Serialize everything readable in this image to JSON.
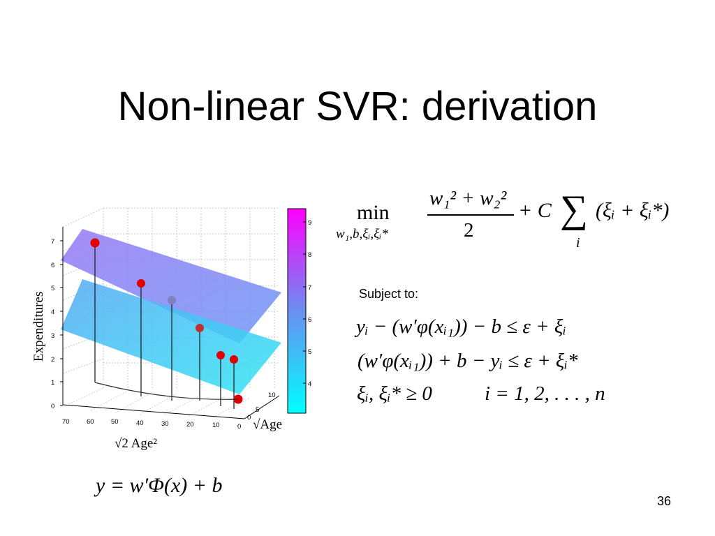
{
  "slide": {
    "title": "Non-linear SVR: derivation",
    "page_number": "36",
    "subject_to": "Subject to:"
  },
  "objective": {
    "operator": "min",
    "variables": "w₁,b,ξᵢ,ξᵢ*",
    "numerator": "w₁² + w₂²",
    "denominator": "2",
    "penalty": "+ C",
    "sum_index": "i",
    "sum_term": "(ξᵢ + ξᵢ*)"
  },
  "constraints": [
    "yᵢ − (w′φ(xᵢ₁)) − b ≤ ε + ξᵢ",
    "(w′φ(xᵢ₁)) + b − yᵢ ≤ ε + ξᵢ*",
    "ξᵢ, ξᵢ* ≥ 0",
    "i = 1, 2, . . . , n"
  ],
  "model_equation": "y = w′Φ(x) + b",
  "chart_data": {
    "type": "scatter",
    "zlabel": "Expenditures",
    "xlabel": "√2 Age²",
    "ylabel": "√Age",
    "z_ticks": [
      "0",
      "1",
      "2",
      "3",
      "4",
      "5",
      "6",
      "7"
    ],
    "x_ticks": [
      "70",
      "60",
      "50",
      "40",
      "30",
      "20",
      "10",
      "0"
    ],
    "y_ticks": [
      "0",
      "5",
      "10"
    ],
    "colorbar_ticks": [
      "4",
      "5",
      "6",
      "7",
      "8",
      "9"
    ],
    "colorbar_colors": [
      "#00ffff",
      "#ff00ff"
    ],
    "zlim": [
      0,
      7
    ],
    "points": [
      {
        "z": 6.9,
        "color": "#e00000"
      },
      {
        "z": 5.2,
        "color": "#e00000"
      },
      {
        "z": 4.5,
        "color": "#8080c0"
      },
      {
        "z": 3.4,
        "color": "#e00000"
      },
      {
        "z": 2.3,
        "color": "#e00000"
      },
      {
        "z": 2.1,
        "color": "#e00000"
      },
      {
        "z": 0.3,
        "color": "#e00000"
      }
    ],
    "plane_colors": [
      "#8f84f6",
      "#3ec5f5"
    ]
  }
}
